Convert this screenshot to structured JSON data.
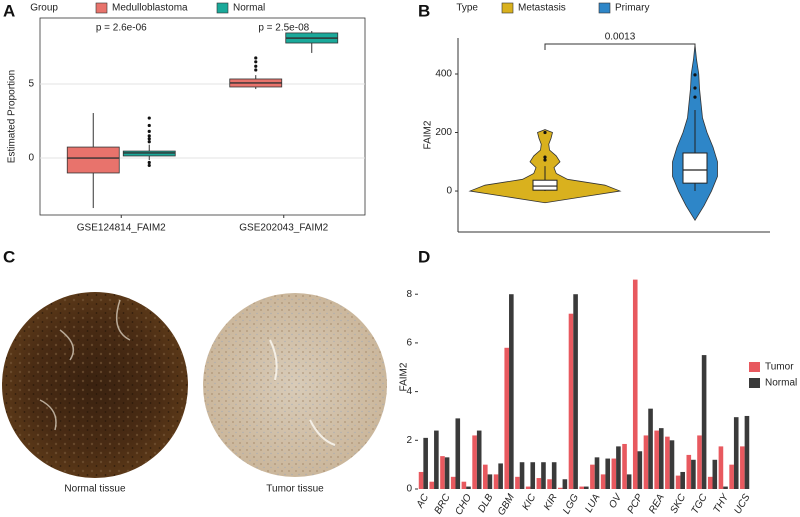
{
  "panel_labels": [
    "A",
    "B",
    "C",
    "D"
  ],
  "tissue_images": [
    {
      "caption": "Normal tissue"
    },
    {
      "caption": "Tumor tissue"
    }
  ],
  "chart_data": [
    {
      "type": "box",
      "legend_title": "Group",
      "ylabel": "Estimated Proportion",
      "categories": [
        "GSE124814_FAIM2",
        "GSE202043_FAIM2"
      ],
      "annotations": [
        "p = 2.6e-06",
        "p = 2.5e-08"
      ],
      "ylim": [
        -3.85,
        9.46
      ],
      "yticks": [
        0,
        5
      ],
      "grid": true,
      "series": [
        {
          "name": "Medulloblastoma",
          "color": "#e8736c",
          "min": [
            -3.38,
            4.66
          ],
          "q1": [
            -1.01,
            4.8
          ],
          "median": [
            0,
            5.07
          ],
          "q3": [
            0.74,
            5.34
          ],
          "max": [
            3.04,
            5.6
          ],
          "outliers": [
            [],
            [
              5.95,
              6.2,
              6.5,
              6.76
            ]
          ]
        },
        {
          "name": "Normal",
          "color": "#1aa99a",
          "min": [
            -0.14,
            7.1
          ],
          "q1": [
            0.14,
            7.77
          ],
          "median": [
            0.34,
            8.1
          ],
          "q3": [
            0.47,
            8.45
          ],
          "max": [
            0.9,
            8.58
          ],
          "outliers": [
            [
              1.1,
              1.3,
              1.5,
              1.8,
              2.2,
              2.7,
              -0.3,
              -0.5
            ],
            []
          ]
        }
      ]
    },
    {
      "type": "violin",
      "legend_title": "Type",
      "ylabel": "FAIM2",
      "annotation": "0.0013",
      "ylim": [
        -140,
        523
      ],
      "yticks": [
        0,
        200,
        400
      ],
      "series": [
        {
          "name": "Metastasis",
          "color": "#d9b11e",
          "min": 0,
          "q1": 3,
          "median": 17,
          "q3": 37,
          "max": 85,
          "outliers": [
            106,
            116,
            200
          ],
          "density_y": [
            -40,
            -20,
            0,
            20,
            40,
            60,
            80,
            100,
            120,
            140,
            160,
            180,
            200,
            210
          ],
          "density_width": [
            0,
            0.5,
            1.0,
            0.8,
            0.3,
            0.15,
            0.12,
            0.2,
            0.15,
            0.06,
            0.05,
            0.08,
            0.1,
            0
          ]
        },
        {
          "name": "Primary",
          "color": "#2e86c8",
          "min": 0,
          "q1": 27,
          "median": 72,
          "q3": 130,
          "max": 277,
          "outliers": [
            321,
            352,
            397
          ],
          "density_y": [
            -100,
            -50,
            0,
            50,
            100,
            150,
            200,
            250,
            300,
            350,
            400,
            450,
            500
          ],
          "density_width": [
            0,
            0.12,
            0.22,
            0.3,
            0.3,
            0.24,
            0.16,
            0.1,
            0.08,
            0.06,
            0.05,
            0.02,
            0
          ]
        }
      ]
    },
    {
      "type": "bar",
      "ylabel": "FAIM2",
      "categories": [
        "AC",
        null,
        "BRC",
        null,
        "CHO",
        null,
        "DLB",
        null,
        "GBM",
        null,
        "KIC",
        null,
        "KIR",
        null,
        "LGG",
        null,
        "LUA",
        null,
        "OV",
        null,
        "PCP",
        null,
        "REA",
        null,
        "SKC",
        null,
        "TGC",
        null,
        "THY",
        null,
        "UCS"
      ],
      "ylim": [
        0,
        9.2
      ],
      "yticks": [
        0,
        2,
        4,
        6,
        8
      ],
      "series": [
        {
          "name": "Tumor",
          "color": "#e8595f",
          "values": [
            0.7,
            0.3,
            1.35,
            0.5,
            0.3,
            2.2,
            1.0,
            0.6,
            5.8,
            0.5,
            0.1,
            0.45,
            0.4,
            0.05,
            7.2,
            0.1,
            1.0,
            0.6,
            1.25,
            1.85,
            8.6,
            2.2,
            2.4,
            2.15,
            0.55,
            1.4,
            2.2,
            0.5,
            1.75,
            1.0,
            1.75
          ]
        },
        {
          "name": "Normal",
          "color": "#3a3a3a",
          "values": [
            2.1,
            2.4,
            1.3,
            2.9,
            0.1,
            2.4,
            0.6,
            1.05,
            8.0,
            1.1,
            1.1,
            1.1,
            1.1,
            0.4,
            8.0,
            0.1,
            1.3,
            1.25,
            1.75,
            0.6,
            1.55,
            3.3,
            2.5,
            2.0,
            0.7,
            1.2,
            5.5,
            1.2,
            0.1,
            2.95,
            3.0
          ]
        }
      ]
    }
  ]
}
